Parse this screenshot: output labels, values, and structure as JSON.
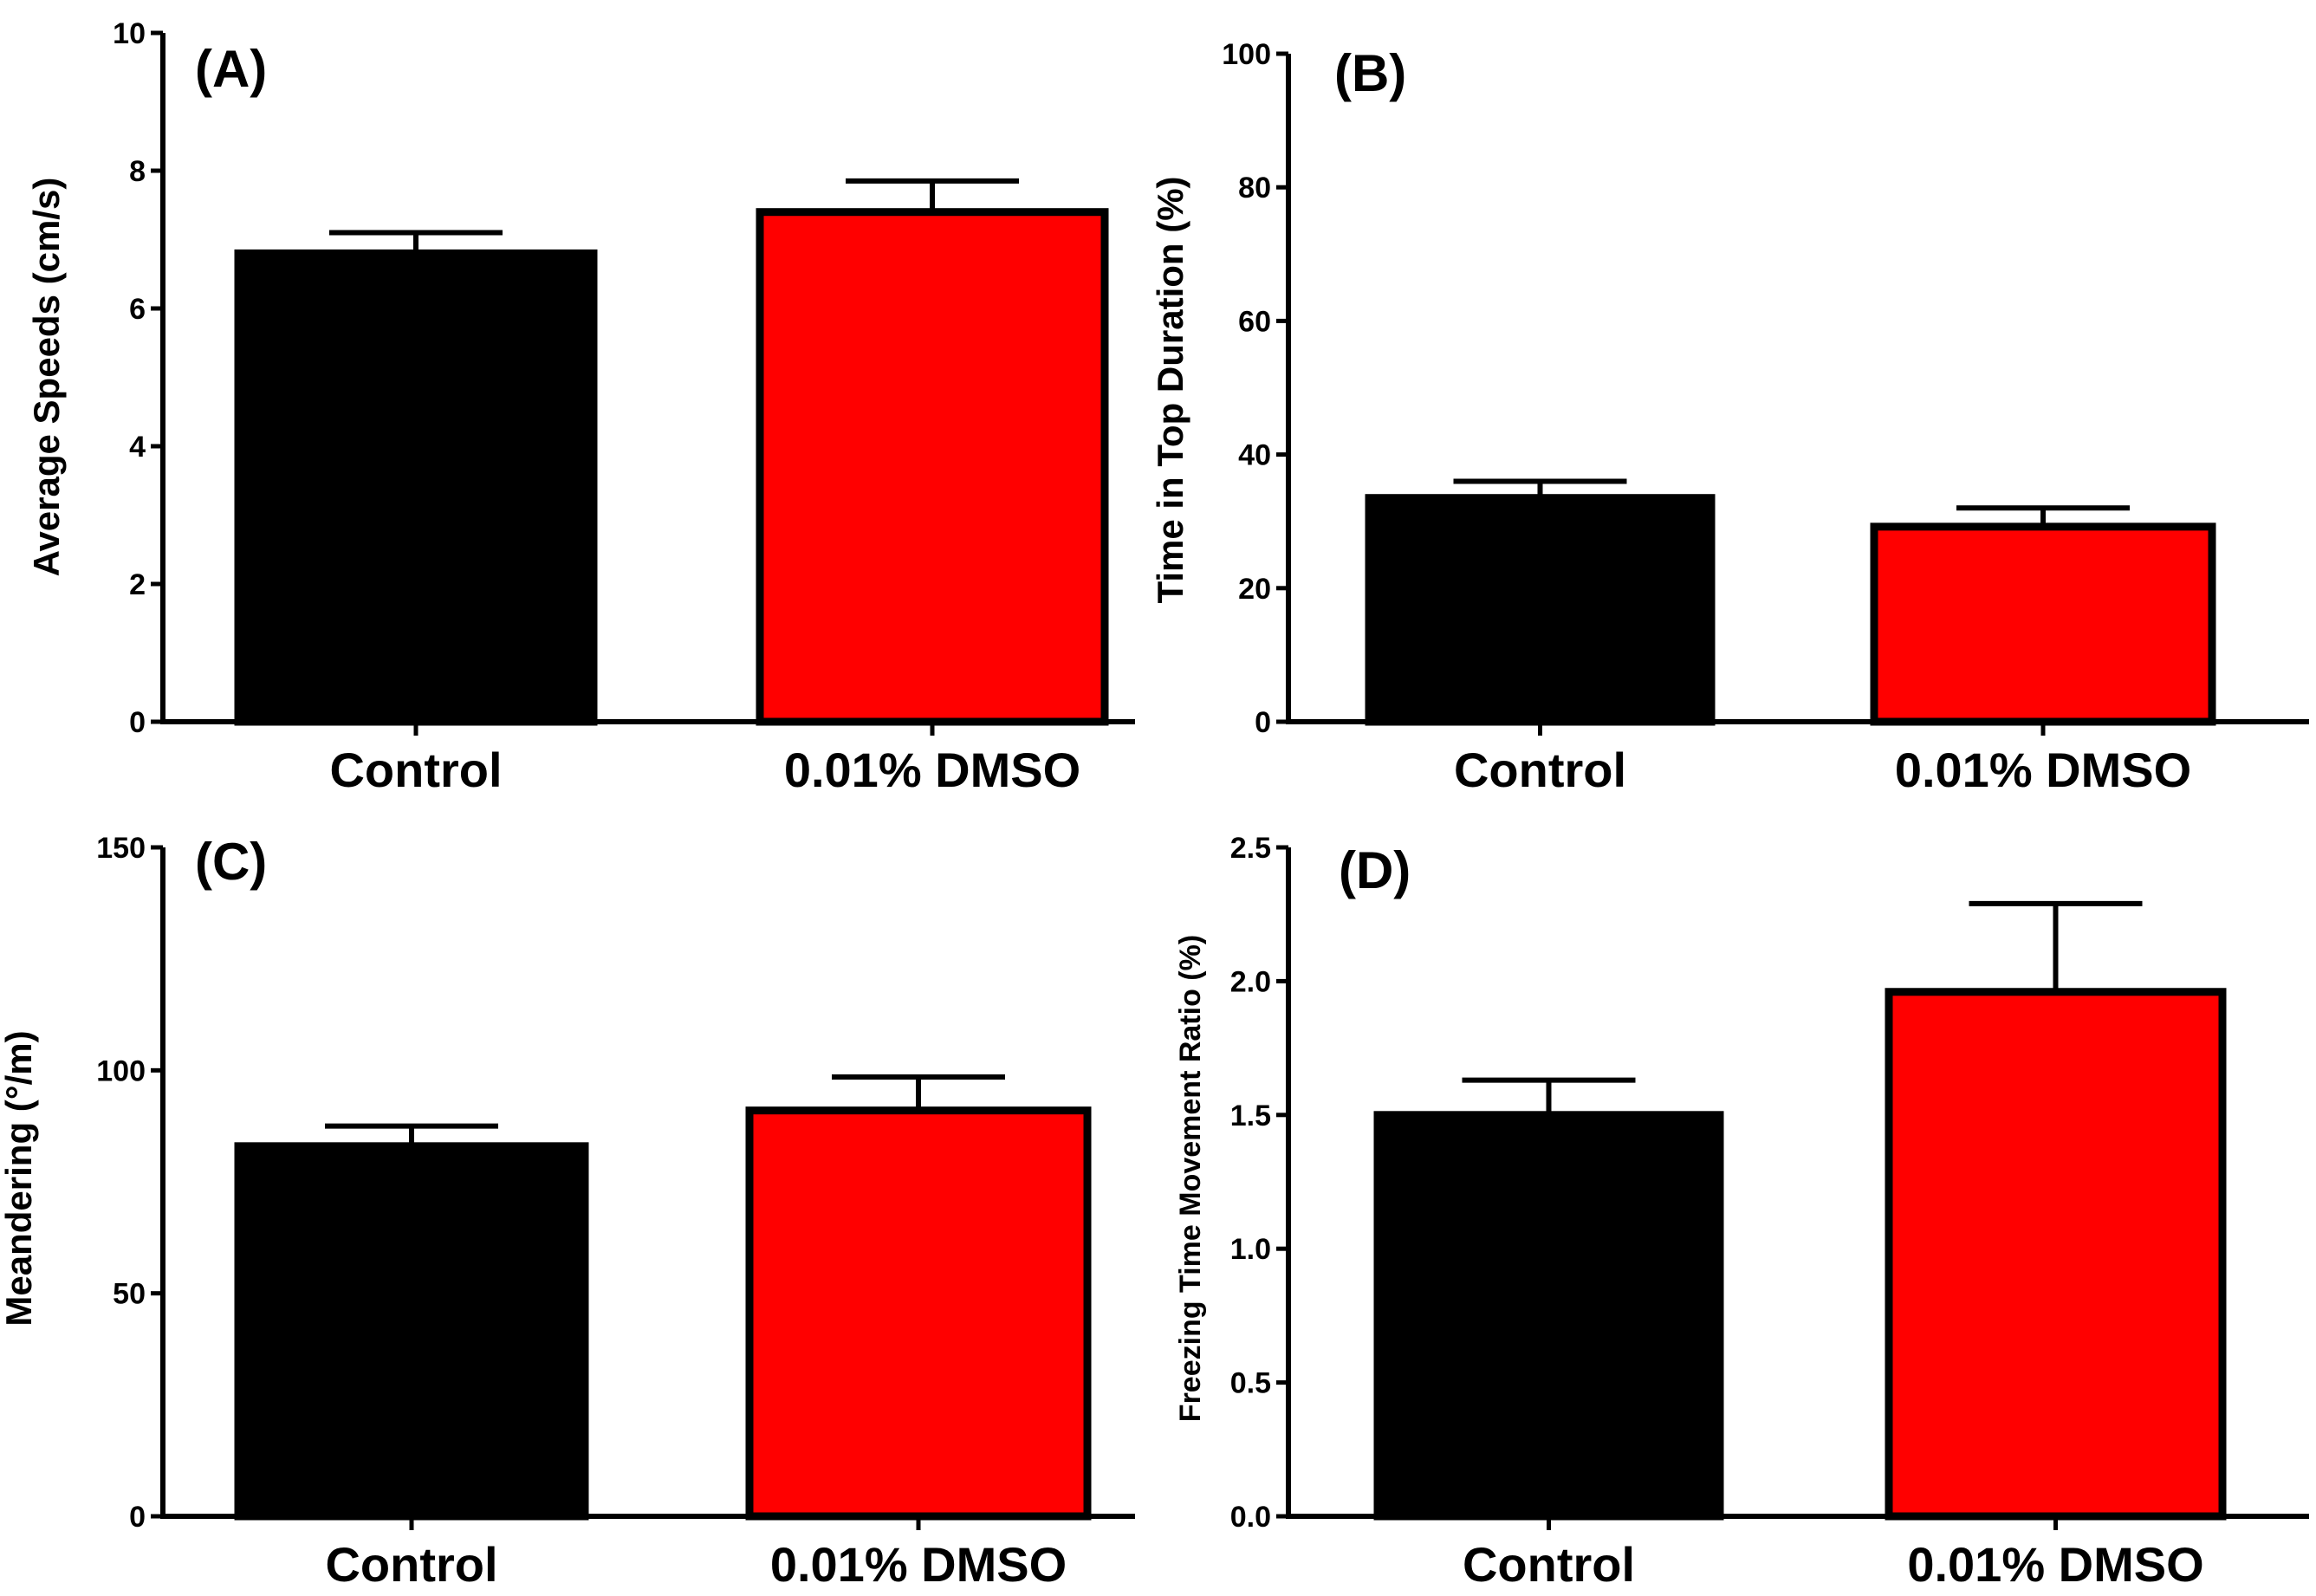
{
  "chart_data": [
    {
      "type": "bar",
      "panel_label": "(A)",
      "categories": [
        "Control",
        "0.01% DMSO"
      ],
      "values": [
        6.8,
        7.4
      ],
      "errors": [
        0.3,
        0.45
      ],
      "colors": [
        "#000000",
        "#ff0000"
      ],
      "ylabel": "Average Speeds (cm/s)",
      "xlabel": "",
      "ylim": [
        0,
        10
      ],
      "yticks": [
        0,
        2,
        4,
        6,
        8,
        10
      ],
      "ytick_labels": [
        "0",
        "2",
        "4",
        "6",
        "8",
        "10"
      ]
    },
    {
      "type": "bar",
      "panel_label": "(B)",
      "categories": [
        "Control",
        "0.01% DMSO"
      ],
      "values": [
        33.5,
        29.2
      ],
      "errors": [
        2.5,
        2.8
      ],
      "colors": [
        "#000000",
        "#ff0000"
      ],
      "ylabel": "Time in Top Duration (%)",
      "xlabel": "",
      "ylim": [
        0,
        100
      ],
      "yticks": [
        0,
        20,
        40,
        60,
        80,
        100
      ],
      "ytick_labels": [
        "0",
        "20",
        "40",
        "60",
        "80",
        "100"
      ]
    },
    {
      "type": "bar",
      "panel_label": "(C)",
      "categories": [
        "Control",
        "0.01% DMSO"
      ],
      "values": [
        83,
        91
      ],
      "errors": [
        4.5,
        7.5
      ],
      "colors": [
        "#000000",
        "#ff0000"
      ],
      "ylabel": "Meandering (°/m)",
      "xlabel": "",
      "ylim": [
        0,
        150
      ],
      "yticks": [
        0,
        50,
        100,
        150
      ],
      "ytick_labels": [
        "0",
        "50",
        "100",
        "150"
      ]
    },
    {
      "type": "bar",
      "panel_label": "(D)",
      "categories": [
        "Control",
        "0.01% DMSO"
      ],
      "values": [
        1.5,
        1.96
      ],
      "errors": [
        0.13,
        0.33
      ],
      "colors": [
        "#000000",
        "#ff0000"
      ],
      "ylabel": "Freezing Time Movement Ratio (%)",
      "xlabel": "",
      "ylim": [
        0,
        2.5
      ],
      "yticks": [
        0,
        0.5,
        1.0,
        1.5,
        2.0,
        2.5
      ],
      "ytick_labels": [
        "0.0",
        "0.5",
        "1.0",
        "1.5",
        "2.0",
        "2.5"
      ]
    }
  ]
}
